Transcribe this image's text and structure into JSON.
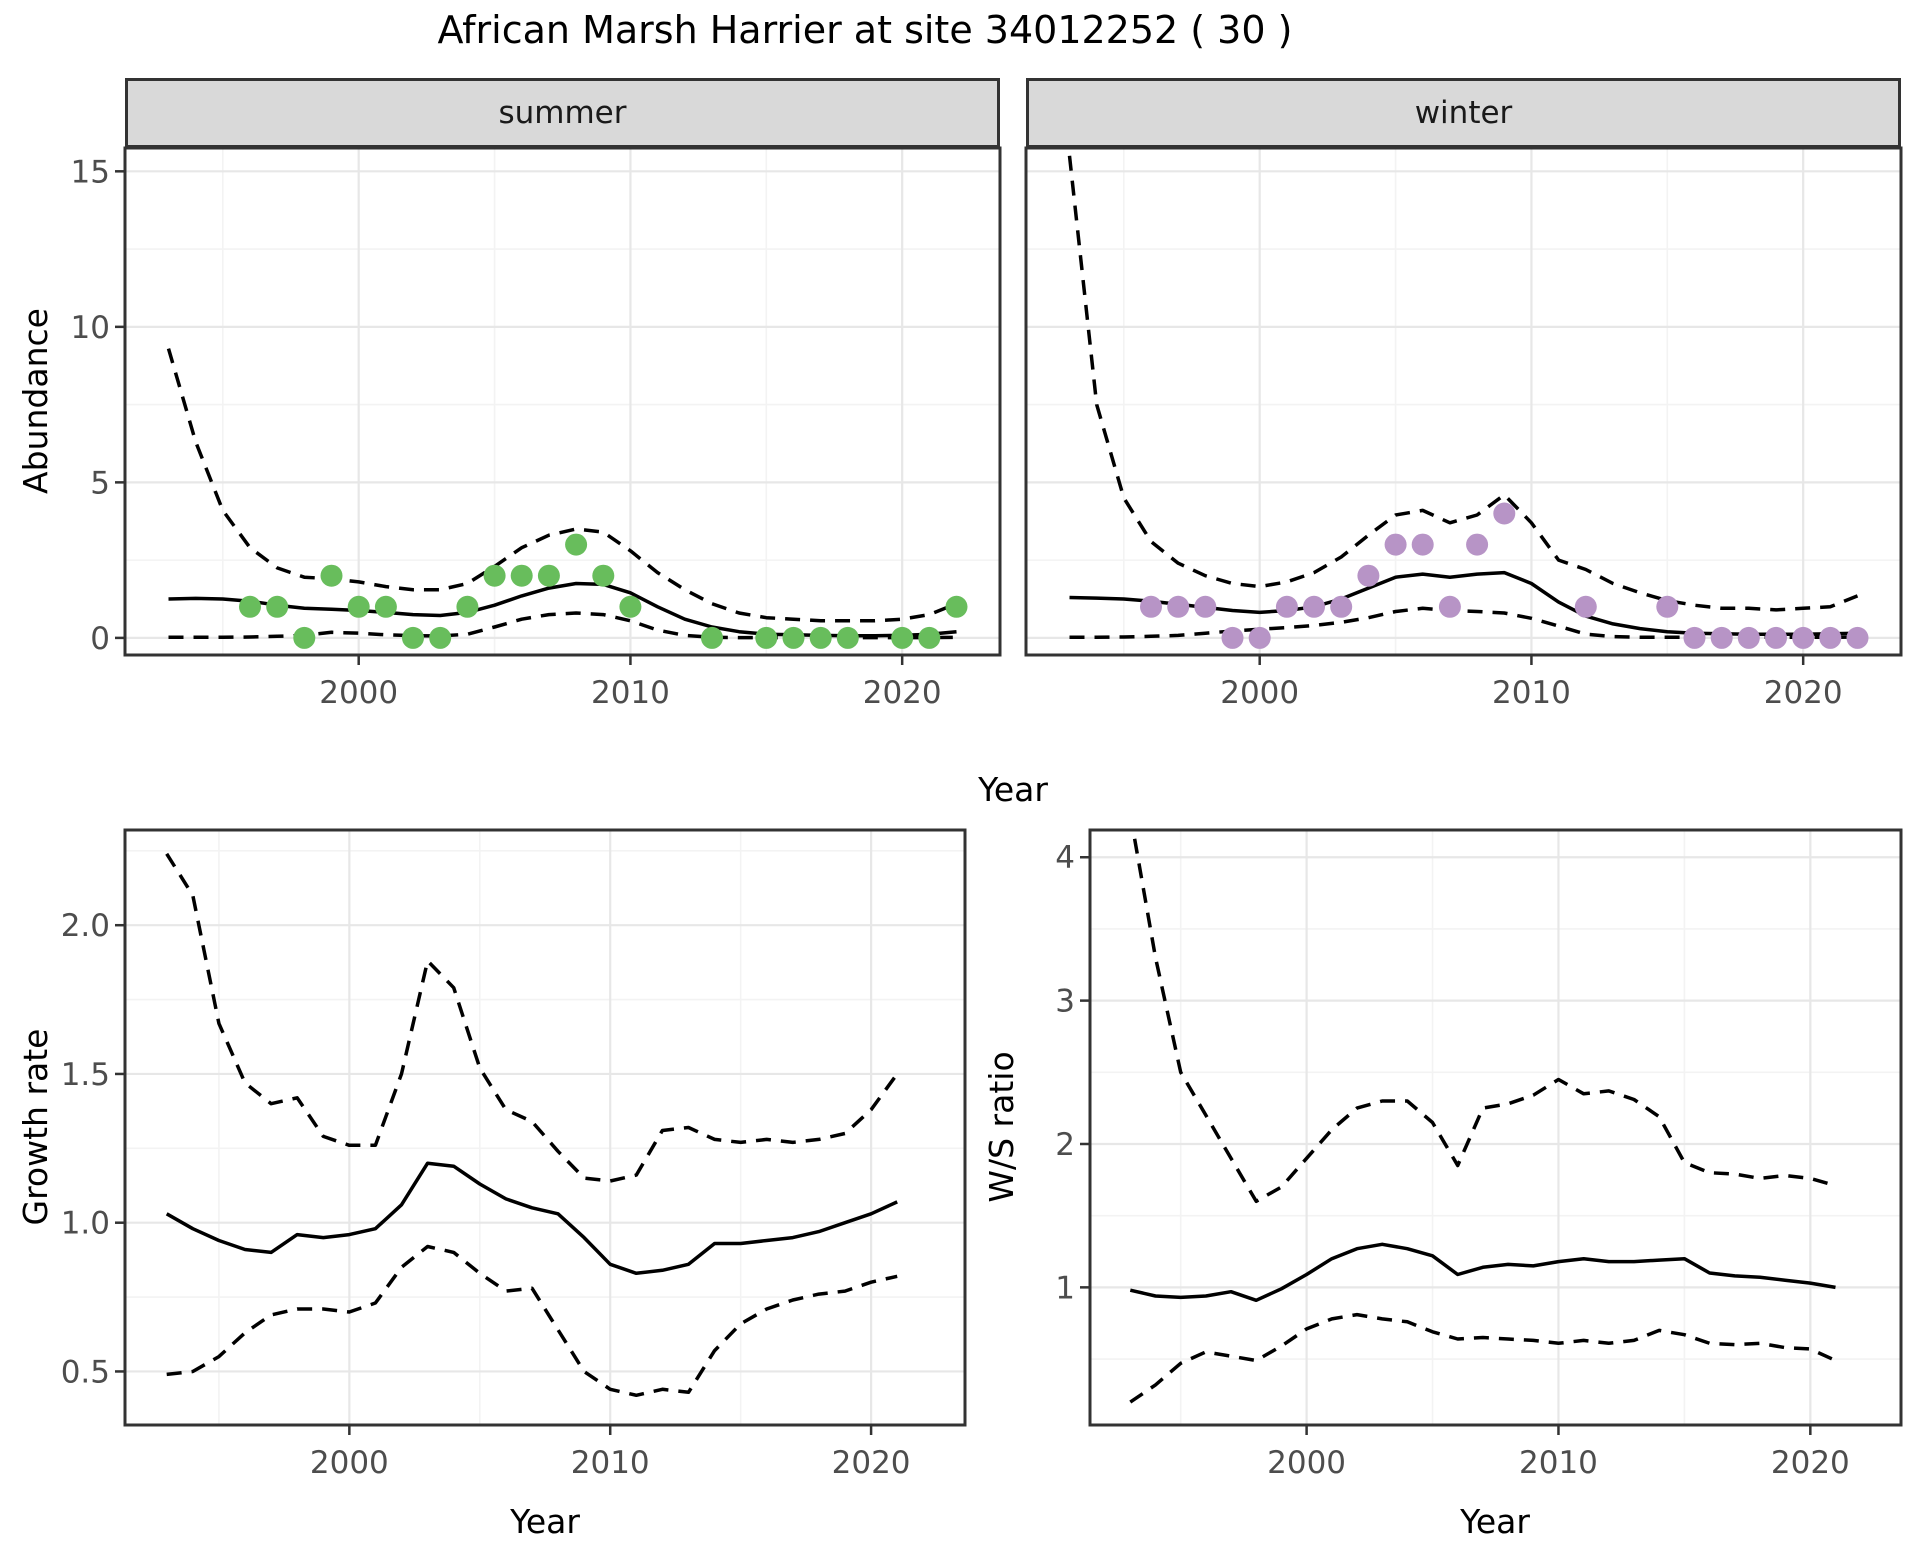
{
  "title": "African Marsh Harrier at site 34012252 ( 30 )",
  "facet_labels": {
    "summer": "summer",
    "winter": "winter"
  },
  "axis_titles": {
    "abundance": "Abundance",
    "year_top": "Year",
    "growth_rate": "Growth rate",
    "ws_ratio": "W/S ratio",
    "year_bottom_left": "Year",
    "year_bottom_right": "Year"
  },
  "colors": {
    "summer_point": "#68bd5c",
    "winter_point": "#b794c6",
    "line": "#000000",
    "strip_fill": "#d9d9d9",
    "panel_border": "#333333",
    "grid_major": "#e7e7e7",
    "grid_minor": "#f3f3f3",
    "tick_label": "#4d4d4d"
  },
  "chart_data": [
    {
      "id": "abundance-summer",
      "type": "line",
      "facet": "summer",
      "title": "African Marsh Harrier at site 34012252 ( 30 )",
      "xlabel": "Year",
      "ylabel": "Abundance",
      "x": [
        1993,
        1994,
        1995,
        1996,
        1997,
        1998,
        1999,
        2000,
        2001,
        2002,
        2003,
        2004,
        2005,
        2006,
        2007,
        2008,
        2009,
        2010,
        2011,
        2012,
        2013,
        2014,
        2015,
        2016,
        2017,
        2018,
        2019,
        2020,
        2021,
        2022
      ],
      "series": [
        {
          "name": "fit",
          "style": "solid",
          "values": [
            1.25,
            1.27,
            1.25,
            1.18,
            1.05,
            0.95,
            0.92,
            0.88,
            0.82,
            0.75,
            0.72,
            0.82,
            1.05,
            1.35,
            1.6,
            1.75,
            1.72,
            1.45,
            1.0,
            0.6,
            0.35,
            0.2,
            0.12,
            0.1,
            0.08,
            0.07,
            0.07,
            0.08,
            0.12,
            0.2
          ]
        },
        {
          "name": "upper-ci",
          "style": "dashed",
          "values": [
            9.3,
            6.3,
            4.1,
            2.9,
            2.25,
            1.95,
            1.9,
            1.8,
            1.65,
            1.55,
            1.55,
            1.75,
            2.3,
            2.9,
            3.3,
            3.5,
            3.4,
            2.8,
            2.1,
            1.55,
            1.1,
            0.8,
            0.65,
            0.6,
            0.55,
            0.55,
            0.55,
            0.6,
            0.75,
            1.1
          ]
        },
        {
          "name": "lower-ci",
          "style": "dashed",
          "values": [
            0.02,
            0.02,
            0.02,
            0.03,
            0.05,
            0.08,
            0.18,
            0.15,
            0.1,
            0.07,
            0.06,
            0.12,
            0.35,
            0.6,
            0.75,
            0.8,
            0.75,
            0.55,
            0.25,
            0.08,
            0.02,
            0.01,
            0.01,
            0.01,
            0.01,
            0.01,
            0.01,
            0.01,
            0.01,
            0.02
          ]
        }
      ],
      "points": {
        "name": "observed-counts",
        "color": "#68bd5c",
        "x": [
          1996,
          1997,
          1998,
          1999,
          2000,
          2001,
          2002,
          2003,
          2004,
          2005,
          2006,
          2007,
          2008,
          2009,
          2010,
          2013,
          2015,
          2016,
          2017,
          2018,
          2020,
          2021,
          2022
        ],
        "y": [
          1,
          1,
          0,
          2,
          1,
          1,
          0,
          0,
          1,
          2,
          2,
          2,
          3,
          2,
          1,
          0,
          0,
          0,
          0,
          0,
          0,
          0,
          1
        ]
      },
      "yticks": {
        "values": [
          0,
          5,
          10,
          15
        ],
        "labels": [
          "0",
          "5",
          "10",
          "15"
        ]
      },
      "xticks": {
        "values": [
          2000,
          2010,
          2020
        ],
        "labels": [
          "2000",
          "2010",
          "2020"
        ]
      },
      "xlim": [
        1991.4,
        2023.6
      ],
      "ylim": [
        -0.55,
        15.75
      ],
      "grid": true,
      "legend": "none"
    },
    {
      "id": "abundance-winter",
      "type": "line",
      "facet": "winter",
      "xlabel": "Year",
      "ylabel": "Abundance",
      "x": [
        1993,
        1994,
        1995,
        1996,
        1997,
        1998,
        1999,
        2000,
        2001,
        2002,
        2003,
        2004,
        2005,
        2006,
        2007,
        2008,
        2009,
        2010,
        2011,
        2012,
        2013,
        2014,
        2015,
        2016,
        2017,
        2018,
        2019,
        2020,
        2021,
        2022
      ],
      "series": [
        {
          "name": "fit",
          "style": "solid",
          "values": [
            1.3,
            1.28,
            1.25,
            1.18,
            1.08,
            0.98,
            0.88,
            0.82,
            0.88,
            1.0,
            1.25,
            1.6,
            1.95,
            2.05,
            1.95,
            2.05,
            2.1,
            1.75,
            1.15,
            0.7,
            0.45,
            0.3,
            0.2,
            0.15,
            0.13,
            0.12,
            0.12,
            0.12,
            0.13,
            0.15
          ]
        },
        {
          "name": "upper-ci",
          "style": "dashed",
          "values": [
            15.5,
            7.5,
            4.5,
            3.1,
            2.4,
            2.0,
            1.75,
            1.65,
            1.8,
            2.1,
            2.6,
            3.3,
            3.95,
            4.1,
            3.7,
            3.95,
            4.6,
            3.7,
            2.5,
            2.2,
            1.75,
            1.45,
            1.2,
            1.05,
            0.95,
            0.95,
            0.9,
            0.95,
            1.0,
            1.35
          ]
        },
        {
          "name": "lower-ci",
          "style": "dashed",
          "values": [
            0.02,
            0.02,
            0.03,
            0.05,
            0.08,
            0.15,
            0.22,
            0.28,
            0.33,
            0.4,
            0.5,
            0.65,
            0.85,
            0.95,
            0.88,
            0.85,
            0.8,
            0.63,
            0.38,
            0.12,
            0.04,
            0.02,
            0.02,
            0.02,
            0.02,
            0.02,
            0.02,
            0.02,
            0.02,
            0.03
          ]
        }
      ],
      "points": {
        "name": "observed-counts",
        "color": "#b794c6",
        "x": [
          1996,
          1997,
          1998,
          1999,
          2000,
          2001,
          2002,
          2003,
          2004,
          2005,
          2006,
          2007,
          2008,
          2009,
          2012,
          2015,
          2016,
          2017,
          2018,
          2019,
          2020,
          2021,
          2022
        ],
        "y": [
          1,
          1,
          1,
          0,
          0,
          1,
          1,
          1,
          2,
          3,
          3,
          1,
          3,
          4,
          1,
          1,
          0,
          0,
          0,
          0,
          0,
          0,
          0
        ]
      },
      "yticks": {
        "values": [
          0,
          5,
          10,
          15
        ],
        "labels": [
          "0",
          "5",
          "10",
          "15"
        ]
      },
      "xticks": {
        "values": [
          2000,
          2010,
          2020
        ],
        "labels": [
          "2000",
          "2010",
          "2020"
        ]
      },
      "xlim": [
        1991.4,
        2023.6
      ],
      "ylim": [
        -0.55,
        15.75
      ],
      "grid": true,
      "legend": "none"
    },
    {
      "id": "growth-rate",
      "type": "line",
      "xlabel": "Year",
      "ylabel": "Growth rate",
      "x": [
        1993,
        1994,
        1995,
        1996,
        1997,
        1998,
        1999,
        2000,
        2001,
        2002,
        2003,
        2004,
        2005,
        2006,
        2007,
        2008,
        2009,
        2010,
        2011,
        2012,
        2013,
        2014,
        2015,
        2016,
        2017,
        2018,
        2019,
        2020,
        2021
      ],
      "series": [
        {
          "name": "fit",
          "style": "solid",
          "values": [
            1.03,
            0.98,
            0.94,
            0.91,
            0.9,
            0.96,
            0.95,
            0.96,
            0.98,
            1.06,
            1.2,
            1.19,
            1.13,
            1.08,
            1.05,
            1.03,
            0.95,
            0.86,
            0.83,
            0.84,
            0.86,
            0.93,
            0.93,
            0.94,
            0.95,
            0.97,
            1.0,
            1.03,
            1.07
          ]
        },
        {
          "name": "upper-ci",
          "style": "dashed",
          "values": [
            2.24,
            2.1,
            1.67,
            1.47,
            1.4,
            1.42,
            1.29,
            1.26,
            1.26,
            1.5,
            1.88,
            1.79,
            1.52,
            1.38,
            1.34,
            1.24,
            1.15,
            1.14,
            1.16,
            1.31,
            1.32,
            1.28,
            1.27,
            1.28,
            1.27,
            1.28,
            1.3,
            1.38,
            1.5
          ]
        },
        {
          "name": "lower-ci",
          "style": "dashed",
          "values": [
            0.49,
            0.5,
            0.55,
            0.63,
            0.69,
            0.71,
            0.71,
            0.7,
            0.73,
            0.85,
            0.92,
            0.9,
            0.83,
            0.77,
            0.78,
            0.64,
            0.5,
            0.44,
            0.42,
            0.44,
            0.43,
            0.57,
            0.66,
            0.71,
            0.74,
            0.76,
            0.77,
            0.8,
            0.82
          ]
        }
      ],
      "yticks": {
        "values": [
          0.5,
          1.0,
          1.5,
          2.0
        ],
        "labels": [
          "0.5",
          "1.0",
          "1.5",
          "2.0"
        ]
      },
      "xticks": {
        "values": [
          2000,
          2010,
          2020
        ],
        "labels": [
          "2000",
          "2010",
          "2020"
        ]
      },
      "xlim": [
        1991.4,
        2023.6
      ],
      "ylim": [
        0.32,
        2.32
      ],
      "grid": true,
      "legend": "none"
    },
    {
      "id": "ws-ratio",
      "type": "line",
      "xlabel": "Year",
      "ylabel": "W/S ratio",
      "x": [
        1993,
        1994,
        1995,
        1996,
        1997,
        1998,
        1999,
        2000,
        2001,
        2002,
        2003,
        2004,
        2005,
        2006,
        2007,
        2008,
        2009,
        2010,
        2011,
        2012,
        2013,
        2014,
        2015,
        2016,
        2017,
        2018,
        2019,
        2020,
        2021
      ],
      "series": [
        {
          "name": "fit",
          "style": "solid",
          "values": [
            0.98,
            0.94,
            0.93,
            0.94,
            0.97,
            0.91,
            0.99,
            1.09,
            1.2,
            1.27,
            1.3,
            1.27,
            1.22,
            1.09,
            1.14,
            1.16,
            1.15,
            1.18,
            1.2,
            1.18,
            1.18,
            1.19,
            1.2,
            1.1,
            1.08,
            1.07,
            1.05,
            1.03,
            1.0
          ]
        },
        {
          "name": "upper-ci",
          "style": "dashed",
          "values": [
            4.3,
            3.3,
            2.5,
            2.2,
            1.9,
            1.6,
            1.7,
            1.9,
            2.1,
            2.25,
            2.3,
            2.3,
            2.15,
            1.85,
            2.25,
            2.28,
            2.34,
            2.45,
            2.35,
            2.37,
            2.31,
            2.19,
            1.87,
            1.8,
            1.79,
            1.76,
            1.78,
            1.76,
            1.71
          ]
        },
        {
          "name": "lower-ci",
          "style": "dashed",
          "values": [
            0.2,
            0.32,
            0.47,
            0.55,
            0.52,
            0.49,
            0.59,
            0.71,
            0.78,
            0.81,
            0.78,
            0.76,
            0.69,
            0.64,
            0.65,
            0.64,
            0.63,
            0.61,
            0.63,
            0.61,
            0.63,
            0.7,
            0.67,
            0.61,
            0.6,
            0.61,
            0.58,
            0.57,
            0.49
          ]
        }
      ],
      "yticks": {
        "values": [
          1,
          2,
          3,
          4
        ],
        "labels": [
          "1",
          "2",
          "3",
          "4"
        ]
      },
      "xticks": {
        "values": [
          2000,
          2010,
          2020
        ],
        "labels": [
          "2000",
          "2010",
          "2020"
        ]
      },
      "xlim": [
        1991.4,
        2023.6
      ],
      "ylim": [
        0.04,
        4.19
      ],
      "grid": true,
      "legend": "none"
    }
  ]
}
